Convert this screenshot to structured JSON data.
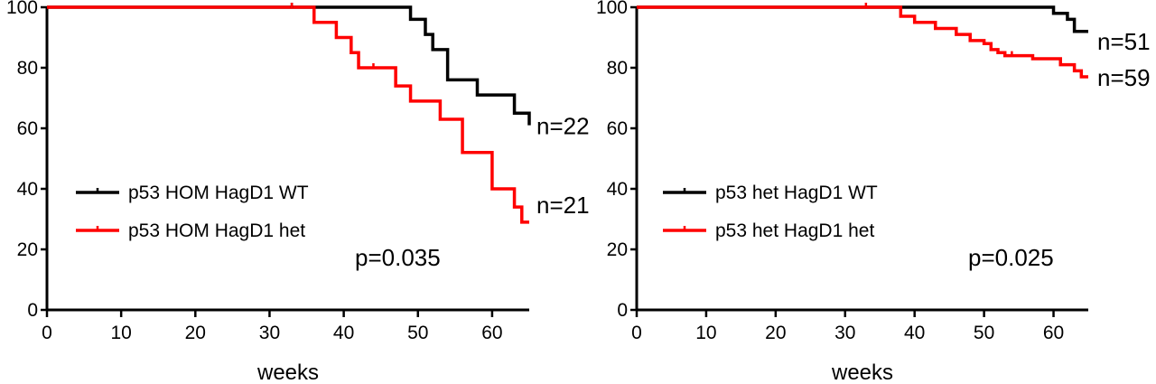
{
  "chart_data": [
    {
      "type": "line",
      "step": true,
      "xlabel": "weeks",
      "ylabel": "",
      "xlim": [
        0,
        65
      ],
      "ylim": [
        0,
        100
      ],
      "xticks": [
        "0",
        "10",
        "20",
        "30",
        "40",
        "50",
        "60"
      ],
      "yticks": [
        "0",
        "20",
        "40",
        "60",
        "80",
        "100"
      ],
      "series": [
        {
          "name": "p53 HOM HagD1 WT",
          "color": "#000000",
          "n_label": "n=22",
          "x": [
            0,
            48,
            49,
            50,
            51,
            52,
            54,
            58,
            60,
            63,
            65
          ],
          "y": [
            100,
            100,
            96,
            96,
            91,
            86,
            76,
            71,
            71,
            65,
            61
          ]
        },
        {
          "name": "p53 HOM HagD1 het",
          "color": "#ff0000",
          "n_label": "n=21",
          "x": [
            0,
            36,
            39,
            41,
            42,
            47,
            49,
            53,
            56,
            60,
            63,
            64,
            65
          ],
          "y": [
            100,
            95,
            90,
            85,
            80,
            74,
            69,
            63,
            52,
            40,
            34,
            29,
            29
          ]
        }
      ],
      "censor_marks": [
        {
          "series": 0,
          "x": 33,
          "y": 100
        },
        {
          "series": 0,
          "x": 58,
          "y": 71
        },
        {
          "series": 1,
          "x": 33,
          "y": 100
        },
        {
          "series": 1,
          "x": 44,
          "y": 80
        }
      ],
      "p_value": "p=0.035"
    },
    {
      "type": "line",
      "step": true,
      "xlabel": "weeks",
      "ylabel": "",
      "xlim": [
        0,
        65
      ],
      "ylim": [
        0,
        100
      ],
      "xticks": [
        "0",
        "10",
        "20",
        "30",
        "40",
        "50",
        "60"
      ],
      "yticks": [
        "0",
        "20",
        "40",
        "60",
        "80",
        "100"
      ],
      "series": [
        {
          "name": "p53 het HagD1 WT",
          "color": "#000000",
          "n_label": "n=51",
          "x": [
            0,
            60,
            62,
            63,
            65
          ],
          "y": [
            100,
            98,
            96,
            92,
            92
          ]
        },
        {
          "name": "p53 het HagD1 het",
          "color": "#ff0000",
          "n_label": "n=59",
          "x": [
            0,
            38,
            40,
            43,
            46,
            48,
            50,
            51,
            52,
            53,
            54,
            57,
            61,
            63,
            64,
            65
          ],
          "y": [
            100,
            97,
            95,
            93,
            91,
            89,
            88,
            86,
            85,
            84,
            84,
            83,
            81,
            79,
            77,
            77
          ]
        }
      ],
      "censor_marks": [
        {
          "series": 1,
          "x": 33,
          "y": 100
        },
        {
          "series": 1,
          "x": 54,
          "y": 84
        }
      ],
      "p_value": "p=0.025"
    }
  ]
}
